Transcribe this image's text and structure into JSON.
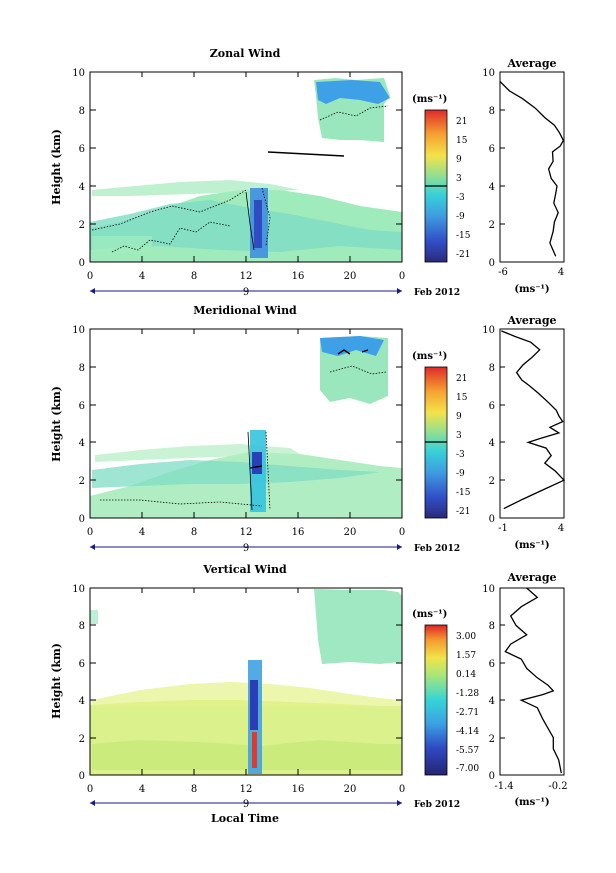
{
  "figure": {
    "xlabel": "Local Time",
    "date_label": "Feb 2012",
    "day_label": "9"
  },
  "chart_data": [
    {
      "type": "heatmap",
      "title": "Zonal Wind",
      "ylabel": "Height (km)",
      "xlabel": "",
      "x_ticks": [
        "0",
        "4",
        "8",
        "12",
        "16",
        "20",
        "0"
      ],
      "y_ticks": [
        "0",
        "2",
        "4",
        "6",
        "8",
        "10"
      ],
      "xlim": [
        0,
        24
      ],
      "ylim": [
        0,
        10
      ],
      "colorbar": {
        "unit": "(ms⁻¹)",
        "ticks": [
          "21",
          "15",
          "9",
          "3",
          "-3",
          "-9",
          "-15",
          "-21"
        ],
        "range": [
          -24,
          24
        ],
        "zero_line": true
      }
    },
    {
      "type": "line",
      "title": "Average",
      "xlabel": "(ms⁻¹)",
      "x_ticks": [
        "-6",
        "4"
      ],
      "xlim": [
        -6,
        4
      ],
      "y_ticks": [
        "0",
        "2",
        "4",
        "6",
        "8",
        "10"
      ],
      "ylim": [
        0,
        10
      ],
      "x": [
        -6.0,
        -4.5,
        -2.5,
        -0.5,
        1.0,
        2.5,
        3.3,
        3.9,
        3.4,
        2.2,
        2.3,
        1.6,
        2.0,
        2.9,
        2.7,
        2.4,
        3.1,
        2.5,
        2.3,
        1.8,
        2.7
      ],
      "y": [
        9.5,
        9.0,
        8.6,
        8.1,
        7.6,
        7.2,
        6.8,
        6.4,
        6.1,
        5.8,
        5.3,
        4.9,
        4.4,
        4.0,
        3.6,
        3.1,
        2.6,
        2.1,
        1.6,
        1.0,
        0.3
      ]
    },
    {
      "type": "heatmap",
      "title": "Meridional Wind",
      "ylabel": "Height (km)",
      "xlabel": "",
      "x_ticks": [
        "0",
        "4",
        "8",
        "12",
        "16",
        "20",
        "0"
      ],
      "y_ticks": [
        "0",
        "2",
        "4",
        "6",
        "8",
        "10"
      ],
      "xlim": [
        0,
        24
      ],
      "ylim": [
        0,
        10
      ],
      "colorbar": {
        "unit": "(ms⁻¹)",
        "ticks": [
          "21",
          "15",
          "9",
          "3",
          "-3",
          "-9",
          "-15",
          "-21"
        ],
        "range": [
          -24,
          24
        ],
        "zero_line": true
      }
    },
    {
      "type": "line",
      "title": "Average",
      "xlabel": "(ms⁻¹)",
      "x_ticks": [
        "-1",
        "4"
      ],
      "xlim": [
        -1,
        4
      ],
      "y_ticks": [
        "0",
        "2",
        "4",
        "6",
        "8",
        "10"
      ],
      "ylim": [
        0,
        10
      ],
      "x": [
        -0.9,
        0.2,
        1.4,
        2.1,
        1.5,
        0.8,
        0.3,
        0.7,
        1.3,
        2.0,
        2.8,
        3.4,
        3.6,
        3.9,
        2.9,
        3.6,
        2.1,
        1.2,
        2.6,
        3.0,
        2.5,
        3.3,
        4.0,
        2.4,
        0.8,
        -0.7
      ],
      "y": [
        9.9,
        9.6,
        9.3,
        8.9,
        8.5,
        8.1,
        7.7,
        7.3,
        7.0,
        6.6,
        6.1,
        5.7,
        5.4,
        5.1,
        4.8,
        4.5,
        4.2,
        4.0,
        3.7,
        3.3,
        2.9,
        2.5,
        2.0,
        1.5,
        1.0,
        0.5
      ]
    },
    {
      "type": "heatmap",
      "title": "Vertical Wind",
      "ylabel": "Height (km)",
      "xlabel": "Local Time",
      "x_ticks": [
        "0",
        "4",
        "8",
        "12",
        "16",
        "20",
        "0"
      ],
      "y_ticks": [
        "0",
        "2",
        "4",
        "6",
        "8",
        "10"
      ],
      "xlim": [
        0,
        24
      ],
      "ylim": [
        0,
        10
      ],
      "colorbar": {
        "unit": "(ms⁻¹)",
        "ticks": [
          "3.00",
          "1.57",
          "0.14",
          "-1.28",
          "-2.71",
          "-4.14",
          "-5.57",
          "-7.00"
        ],
        "range": [
          -7.7,
          3.7
        ],
        "zero_line": false
      }
    },
    {
      "type": "line",
      "title": "Average",
      "xlabel": "(ms⁻¹)",
      "x_ticks": [
        "-1.4",
        "-0.2"
      ],
      "xlim": [
        -1.4,
        -0.2
      ],
      "y_ticks": [
        "0",
        "2",
        "4",
        "6",
        "8",
        "10"
      ],
      "ylim": [
        0,
        10
      ],
      "x": [
        -0.9,
        -0.7,
        -1.0,
        -1.2,
        -1.1,
        -0.9,
        -1.2,
        -1.3,
        -1.0,
        -0.9,
        -0.7,
        -0.5,
        -0.4,
        -0.6,
        -1.0,
        -0.7,
        -0.6,
        -0.5,
        -0.4,
        -0.4,
        -0.3,
        -0.25
      ],
      "y": [
        10.0,
        9.5,
        9.0,
        8.5,
        8.0,
        7.5,
        7.0,
        6.6,
        6.2,
        5.7,
        5.2,
        4.8,
        4.5,
        4.3,
        4.0,
        3.6,
        3.0,
        2.5,
        2.0,
        1.4,
        0.8,
        0.1
      ]
    }
  ]
}
